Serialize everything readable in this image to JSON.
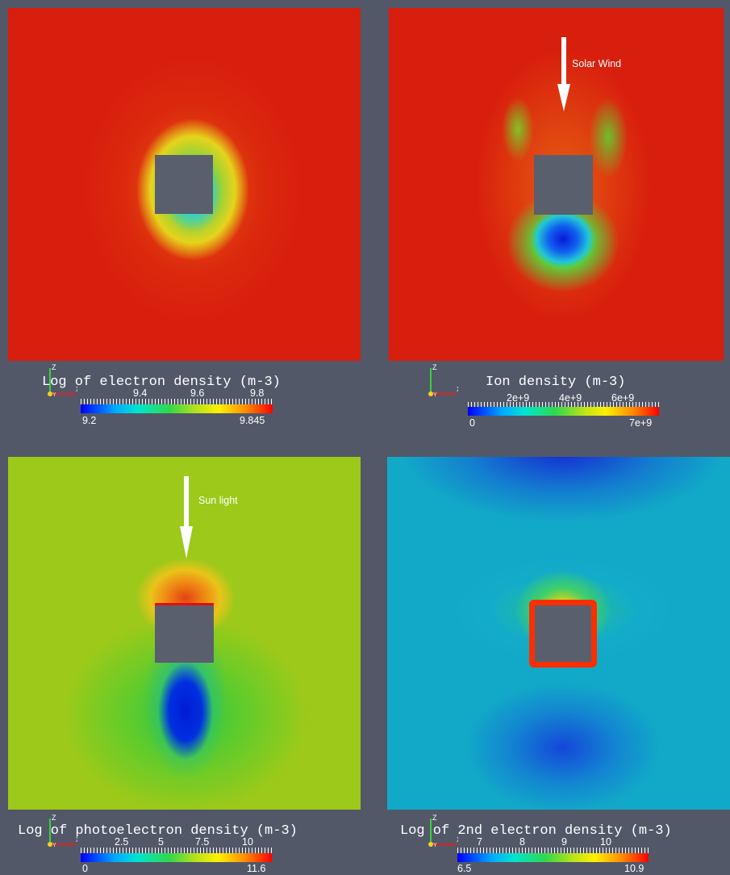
{
  "panels": [
    {
      "title": "Log of electron density (m-3)",
      "ticks": [
        "9.4",
        "9.6",
        "9.8"
      ],
      "range_min": "9.2",
      "range_max": "9.845",
      "colormap": "rainbow",
      "background_color": "#d81e0d"
    },
    {
      "title": "Ion density (m-3)",
      "ticks": [
        "2e+9",
        "4e+9",
        "6e+9"
      ],
      "range_min": "0",
      "range_max": "7e+9",
      "colormap": "rainbow",
      "background_color": "#d81e0d",
      "annotation": "Solar Wind"
    },
    {
      "title": "Log of photoelectron density (m-3)",
      "ticks": [
        "2.5",
        "5",
        "7.5",
        "10"
      ],
      "range_min": "0",
      "range_max": "11.6",
      "colormap": "rainbow",
      "background_color": "#9cc91a",
      "annotation": "Sun light"
    },
    {
      "title": "Log of 2nd electron density (m-3)",
      "ticks": [
        "7",
        "8",
        "9",
        "10"
      ],
      "range_min": "6.5",
      "range_max": "10.9",
      "colormap": "rainbow",
      "background_color": "#12a8c8"
    }
  ],
  "axes_labels": {
    "z": "Z",
    "y": "Y",
    "x": "X"
  },
  "colors": {
    "viewport_background": "#525868",
    "object": "#5a5f6e"
  }
}
